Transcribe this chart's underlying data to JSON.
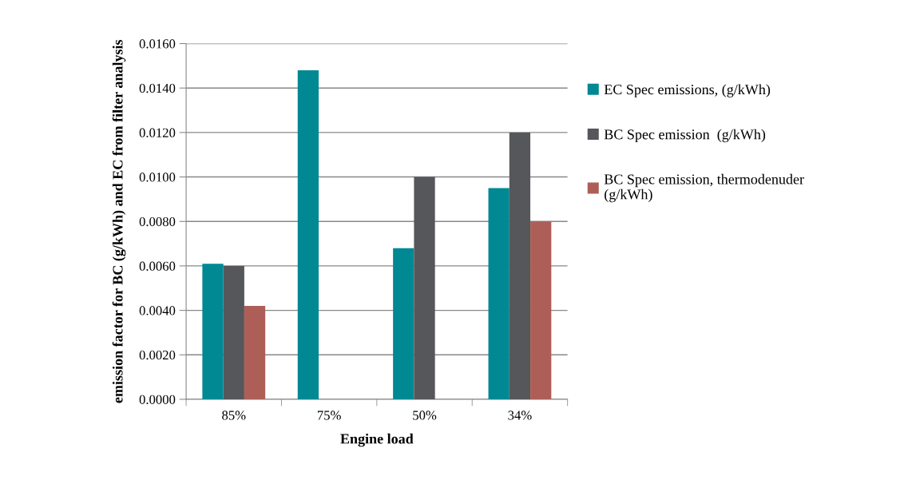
{
  "chart_data": {
    "type": "bar",
    "xlabel": "Engine load",
    "ylabel": "emission factor for BC (g/kWh) and EC from filter analysis",
    "categories": [
      "85%",
      "75%",
      "50%",
      "34%"
    ],
    "series": [
      {
        "name": "EC Spec emissions, (g/kWh)",
        "color": "#008893",
        "values": [
          0.0061,
          0.0148,
          0.0068,
          0.0095
        ]
      },
      {
        "name": "BC Spec emission  (g/kWh)",
        "color": "#56575b",
        "values": [
          0.006,
          null,
          0.01,
          0.012
        ]
      },
      {
        "name": "BC Spec emission, thermodenuder\n(g/kWh)",
        "color": "#ad5f57",
        "values": [
          0.0042,
          null,
          null,
          0.008
        ]
      }
    ],
    "ylim": [
      0,
      0.016
    ],
    "yticks": [
      {
        "value": 0,
        "label": "0.0000"
      },
      {
        "value": 0.002,
        "label": "0.0020"
      },
      {
        "value": 0.004,
        "label": "0.0040"
      },
      {
        "value": 0.006,
        "label": "0.0060"
      },
      {
        "value": 0.008,
        "label": "0.0080"
      },
      {
        "value": 0.01,
        "label": "0.0100"
      },
      {
        "value": 0.012,
        "label": "0.0120"
      },
      {
        "value": 0.014,
        "label": "0.0140"
      },
      {
        "value": 0.016,
        "label": "0.0160"
      }
    ],
    "grid": "y",
    "legend": "right"
  }
}
